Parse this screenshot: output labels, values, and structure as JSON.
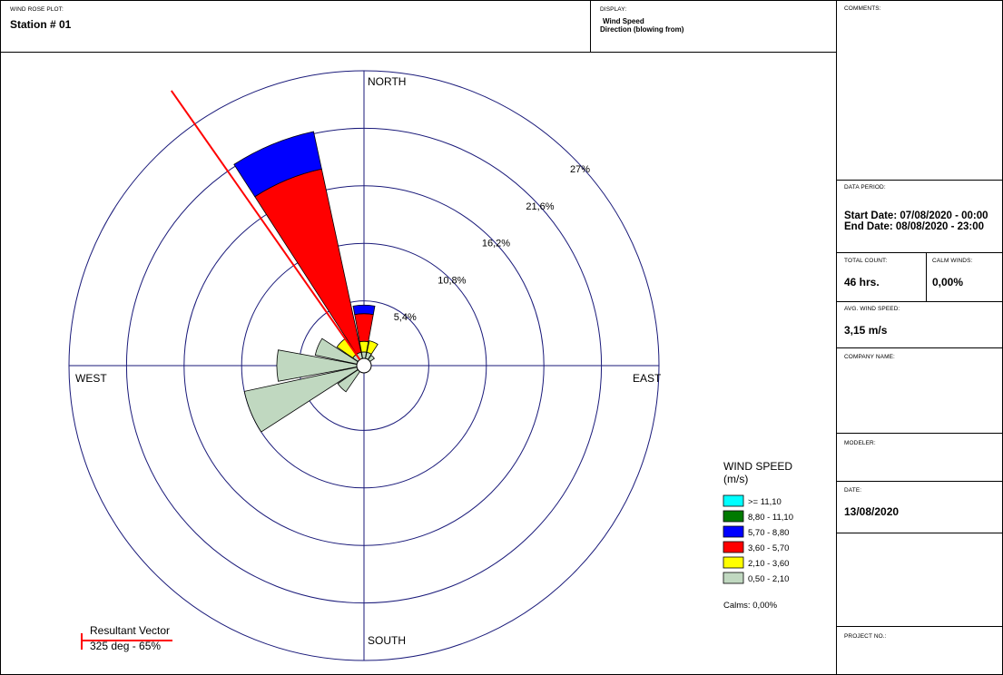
{
  "header": {
    "plot_label": "WIND ROSE PLOT:",
    "station": "Station #  01",
    "display_label": "DISPLAY:",
    "display_line1": "Wind Speed",
    "display_line2": "Direction (blowing from)"
  },
  "side": {
    "comments_label": "COMMENTS:",
    "data_period_label": "DATA PERIOD:",
    "start_date": "Start Date: 07/08/2020 - 00:00",
    "end_date": "End Date: 08/08/2020 - 23:00",
    "total_count_label": "TOTAL COUNT:",
    "total_count": "46 hrs.",
    "calm_winds_label": "CALM WINDS:",
    "calm_winds": "0,00%",
    "avg_speed_label": "AVG. WIND SPEED:",
    "avg_speed": "3,15 m/s",
    "company_label": "COMPANY NAME:",
    "modeler_label": "MODELER:",
    "date_label": "DATE:",
    "date": "13/08/2020",
    "project_label": "PROJECT NO.:"
  },
  "chart_data": {
    "type": "wind-rose",
    "direction_labels": {
      "north": "NORTH",
      "south": "SOUTH",
      "east": "EAST",
      "west": "WEST"
    },
    "rings": [
      {
        "value": 5.4,
        "label": "5,4%"
      },
      {
        "value": 10.8,
        "label": "10,8%"
      },
      {
        "value": 16.2,
        "label": "16,2%"
      },
      {
        "value": 21.6,
        "label": "21,6%"
      },
      {
        "value": 27,
        "label": "27%"
      }
    ],
    "max_percent": 27,
    "sector_width_deg": 22.5,
    "legend": {
      "title_line1": "WIND SPEED",
      "title_line2": "(m/s)",
      "classes": [
        {
          "label": ">= 11,10",
          "color": "#00ffff"
        },
        {
          "label": "8,80 - 11,10",
          "color": "#007a00"
        },
        {
          "label": "5,70 - 8,80",
          "color": "#0000ff"
        },
        {
          "label": "3,60 - 5,70",
          "color": "#ff0000"
        },
        {
          "label": "2,10 - 3,60",
          "color": "#ffff00"
        },
        {
          "label": "0,50 - 2,10",
          "color": "#c0d8c0"
        }
      ],
      "calms": "Calms: 0,00%"
    },
    "sectors": [
      {
        "dir": 0,
        "bands": [
          0.6,
          1.0,
          2.6,
          0.8,
          0,
          0
        ]
      },
      {
        "dir": 22.5,
        "bands": [
          0.6,
          1.1,
          0,
          0,
          0,
          0
        ]
      },
      {
        "dir": 45,
        "bands": [
          0.5,
          0,
          0,
          0,
          0,
          0
        ]
      },
      {
        "dir": 67.5,
        "bands": [
          0,
          0,
          0,
          0,
          0,
          0
        ]
      },
      {
        "dir": 90,
        "bands": [
          0,
          0,
          0,
          0,
          0,
          0
        ]
      },
      {
        "dir": 112.5,
        "bands": [
          0,
          0,
          0,
          0,
          0,
          0
        ]
      },
      {
        "dir": 135,
        "bands": [
          0,
          0,
          0,
          0,
          0,
          0
        ]
      },
      {
        "dir": 157.5,
        "bands": [
          0,
          0,
          0,
          0,
          0,
          0
        ]
      },
      {
        "dir": 180,
        "bands": [
          0,
          0,
          0,
          0,
          0,
          0
        ]
      },
      {
        "dir": 202.5,
        "bands": [
          0,
          0,
          0,
          0,
          0,
          0
        ]
      },
      {
        "dir": 225,
        "bands": [
          2.3,
          0,
          0,
          0,
          0,
          0
        ]
      },
      {
        "dir": 247.5,
        "bands": [
          10.8,
          0,
          0,
          0,
          0,
          0
        ]
      },
      {
        "dir": 270,
        "bands": [
          7.5,
          0,
          0,
          0,
          0,
          0
        ]
      },
      {
        "dir": 292.5,
        "bands": [
          4.0,
          0,
          0,
          0,
          0,
          0
        ]
      },
      {
        "dir": 315,
        "bands": [
          0.6,
          1.8,
          0,
          0,
          0,
          0
        ]
      },
      {
        "dir": 337.5,
        "bands": [
          0.6,
          0,
          17.6,
          3.6,
          0,
          0
        ]
      }
    ],
    "resultant": {
      "dir_deg": 325,
      "percent": 65,
      "label_line1": "Resultant Vector",
      "label_line2": "325 deg - 65%"
    }
  }
}
